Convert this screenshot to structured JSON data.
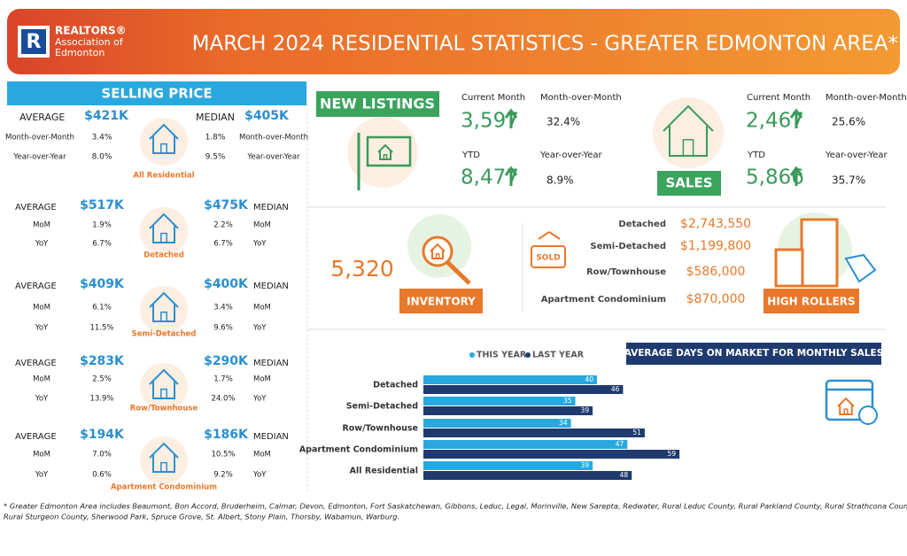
{
  "header": {
    "org_line1": "REALTORS®",
    "org_line2": "Association of",
    "org_line3": "Edmonton",
    "title": "MARCH 2024 RESIDENTIAL STATISTICS - GREATER EDMONTON AREA*"
  },
  "selling_price": {
    "title": "SELLING PRICE",
    "groups": [
      {
        "name": "All Residential",
        "average_label": "AVERAGE",
        "average": "$421K",
        "median_label": "MEDIAN",
        "median": "$405K",
        "rows": [
          [
            "Month-over-Month",
            "3.4%",
            "1.8%",
            "Month-over-Month"
          ],
          [
            "Year-over-Year",
            "8.0%",
            "9.5%",
            "Year-over-Year"
          ]
        ]
      },
      {
        "name": "Detached",
        "average_label": "AVERAGE",
        "average": "$517K",
        "median_label": "MEDIAN",
        "median": "$475K",
        "rows": [
          [
            "MoM",
            "1.9%",
            "2.2%",
            "MoM"
          ],
          [
            "YoY",
            "6.7%",
            "6.7%",
            "YoY"
          ]
        ]
      },
      {
        "name": "Semi-Detached",
        "average_label": "AVERAGE",
        "average": "$409K",
        "median_label": "MEDIAN",
        "median": "$400K",
        "rows": [
          [
            "MoM",
            "6.1%",
            "3.4%",
            "MoM"
          ],
          [
            "YoY",
            "11.5%",
            "9.6%",
            "YoY"
          ]
        ]
      },
      {
        "name": "Row/Townhouse",
        "average_label": "AVERAGE",
        "average": "$283K",
        "median_label": "MEDIAN",
        "median": "$290K",
        "rows": [
          [
            "MoM",
            "2.5%",
            "1.7%",
            "MoM"
          ],
          [
            "YoY",
            "13.9%",
            "24.0%",
            "YoY"
          ]
        ]
      },
      {
        "name": "Apartment Condominium",
        "average_label": "AVERAGE",
        "average": "$194K",
        "median_label": "MEDIAN",
        "median": "$186K",
        "rows": [
          [
            "MoM",
            "7.0%",
            "10.5%",
            "MoM"
          ],
          [
            "YoY",
            "0.6%",
            "9.2%",
            "YoY"
          ]
        ]
      }
    ]
  },
  "new_listings": {
    "title": "NEW LISTINGS",
    "current_month_label": "Current Month",
    "current_month": "3,597",
    "mom_label": "Month-over-Month",
    "mom": "32.4%",
    "ytd_label": "YTD",
    "ytd": "8,477",
    "yoy_label": "Year-over-Year",
    "yoy": "8.9%"
  },
  "sales": {
    "title": "SALES",
    "current_month_label": "Current Month",
    "current_month": "2,467",
    "mom_label": "Month-over-Month",
    "mom": "25.6%",
    "ytd_label": "YTD",
    "ytd": "5,866",
    "yoy_label": "Year-over-Year",
    "yoy": "35.7%"
  },
  "inventory": {
    "value": "5,320",
    "title": "INVENTORY"
  },
  "high_rollers": {
    "sign": "SOLD",
    "title": "HIGH ROLLERS",
    "rows": [
      [
        "Detached",
        "$2,743,550"
      ],
      [
        "Semi-Detached",
        "$1,199,800"
      ],
      [
        "Row/Townhouse",
        "$586,000"
      ],
      [
        "Apartment Condominium",
        "$870,000"
      ]
    ]
  },
  "days_on_market": {
    "type": "bar",
    "title": "AVERAGE DAYS ON MARKET FOR MONTHLY SALES",
    "categories": [
      "Detached",
      "Semi-Detached",
      "Row/Townhouse",
      "Apartment Condominium",
      "All Residential"
    ],
    "series": [
      {
        "name": "THIS YEAR",
        "color": "#29a8e0",
        "values": [
          40,
          35,
          34,
          47,
          39
        ]
      },
      {
        "name": "LAST YEAR",
        "color": "#1f3a6e",
        "values": [
          46,
          39,
          51,
          59,
          48
        ]
      }
    ]
  },
  "footnote": [
    "* Greater Edmonton Area includes Beaumont, Bon Accord, Bruderheim, Calmar, Devon, Edmonton, Fort Saskatchewan, Gibbons, Leduc, Legal, Morinville, New Sarepta, Redwater, Rural Leduc County, Rural Parkland County, Rural Strathcona County,",
    "Rural Sturgeon County, Sherwood Park, Spruce Grove, St. Albert, Stony Plain, Thorsby, Wabamun, Warburg."
  ]
}
